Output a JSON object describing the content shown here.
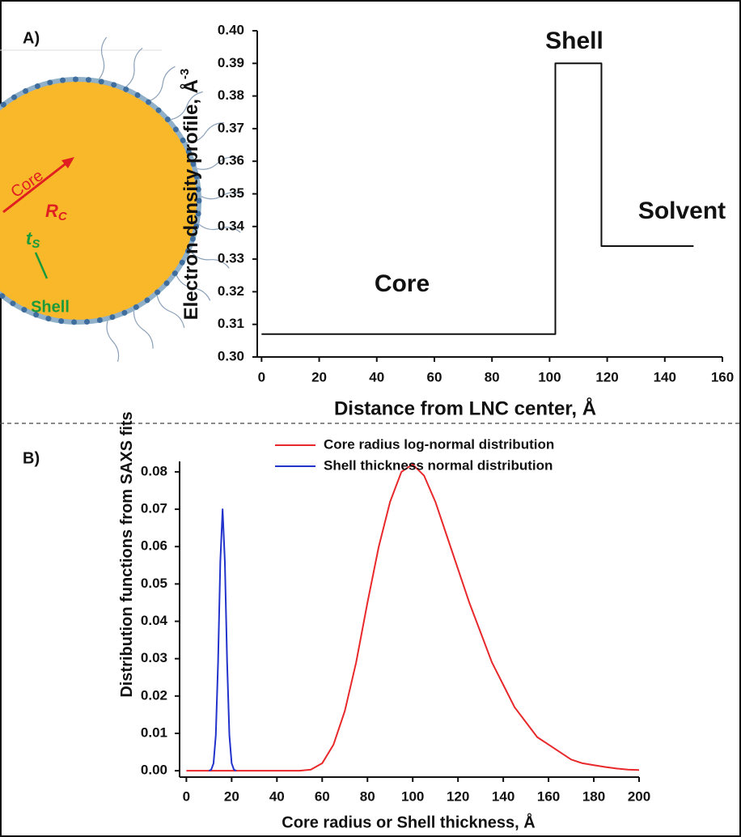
{
  "illustration": {
    "core_label": "Core",
    "radius_symbol": "R",
    "radius_subscript": "C",
    "thickness_symbol": "t",
    "thickness_subscript": "S",
    "shell_label": "Shell"
  },
  "chart_data": [
    {
      "type": "line",
      "panel_label": "A)",
      "x": [
        0,
        102,
        102,
        118,
        118,
        150
      ],
      "values": [
        0.307,
        0.307,
        0.39,
        0.39,
        0.334,
        0.334
      ],
      "color": "#111111",
      "xlabel": "Distance from LNC center, Å",
      "ylabel": "Electron density profile, Å",
      "ylabel_superscript": "-3",
      "xlim": [
        -1.5,
        160
      ],
      "ylim": [
        0.3,
        0.4
      ],
      "xticks": [
        0,
        20,
        40,
        60,
        80,
        100,
        120,
        140,
        160
      ],
      "yticks": [
        {
          "value": 0.3,
          "label": "0.30"
        },
        0.31,
        0.32,
        0.33,
        0.34,
        0.35,
        0.36,
        0.37,
        0.38,
        0.39,
        {
          "value": 0.4,
          "label": "0.40"
        }
      ],
      "annotations": [
        "Core",
        "Shell",
        "Solvent"
      ]
    },
    {
      "type": "line",
      "panel_label": "B)",
      "xlabel": "Core radius or Shell thickness, Å",
      "ylabel": "Distribution functions from SAXS fits",
      "xlim": [
        -3,
        200
      ],
      "ylim": [
        -0.0017,
        0.0828
      ],
      "xticks": [
        0,
        20,
        40,
        60,
        80,
        100,
        120,
        140,
        160,
        180,
        200
      ],
      "yticks": [
        {
          "value": 0,
          "label": "0.00"
        },
        0.01,
        0.02,
        0.03,
        0.04,
        0.05,
        0.06,
        0.07,
        {
          "value": 0.08,
          "label": "0.08"
        }
      ],
      "legend": "top",
      "series": [
        {
          "name": "Core radius log-normal distribution",
          "color": "#e8282b",
          "x": [
            0,
            5,
            10,
            15,
            20,
            25,
            30,
            35,
            40,
            45,
            50,
            55,
            60,
            65,
            70,
            75,
            80,
            85,
            90,
            95,
            100,
            105,
            110,
            115,
            120,
            125,
            130,
            135,
            140,
            145,
            150,
            155,
            160,
            165,
            170,
            175,
            180,
            185,
            190,
            195,
            200
          ],
          "values": [
            0,
            0,
            0,
            0,
            0,
            0,
            0,
            0,
            0,
            0,
            0,
            0.0003,
            0.002,
            0.007,
            0.016,
            0.029,
            0.045,
            0.06,
            0.072,
            0.08,
            0.082,
            0.079,
            0.072,
            0.063,
            0.054,
            0.045,
            0.037,
            0.029,
            0.023,
            0.017,
            0.013,
            0.009,
            0.007,
            0.005,
            0.003,
            0.002,
            0.0015,
            0.001,
            0.0006,
            0.0003,
            0.0002
          ]
        },
        {
          "name": "Shell thickness normal distribution",
          "color": "#2233cc",
          "x": [
            10,
            11,
            12,
            13,
            14,
            15,
            16,
            17,
            18,
            19,
            20,
            21,
            22
          ],
          "values": [
            0,
            0.0003,
            0.002,
            0.0095,
            0.029,
            0.056,
            0.07,
            0.056,
            0.029,
            0.0095,
            0.002,
            0.0003,
            0
          ]
        }
      ]
    }
  ]
}
